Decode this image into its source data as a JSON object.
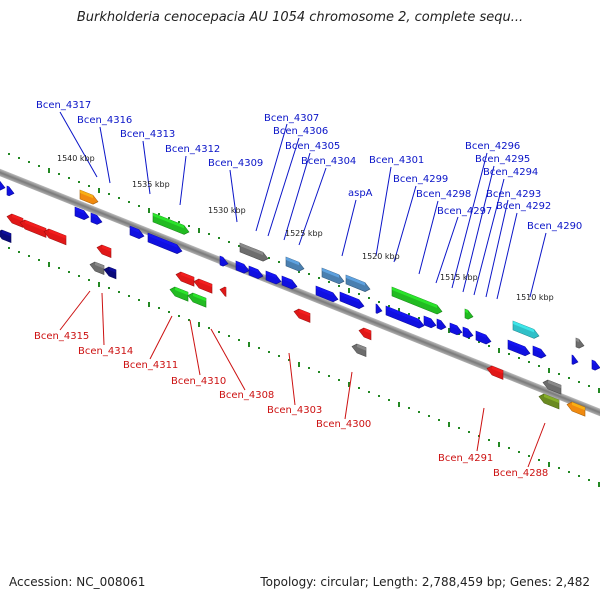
{
  "title": "Burkholderia cenocepacia AU 1054 chromosome 2, complete sequ...",
  "footer": {
    "accession": "Accession: NC_008061",
    "topology": "Topology: circular; Length: 2,788,459 bp; Genes: 2,482"
  },
  "colors": {
    "backbone": "#8a8a8a",
    "forward_label": "#0b15c8",
    "reverse_label": "#cc1111",
    "gene_blue": "#1010e0",
    "gene_red": "#e01818",
    "gene_green": "#22bb22",
    "gene_gray": "#6d6d6d",
    "gene_steel": "#4a7fb0",
    "gene_orange": "#f08a10",
    "gene_navy": "#0a0a7a",
    "gene_cyan": "#30c0c8",
    "gene_olive": "#6a8a20",
    "tick": "#228822"
  },
  "kbp_labels": [
    "1540 kbp",
    "1535 kbp",
    "1530 kbp",
    "1525 kbp",
    "1520 kbp",
    "1515 kbp",
    "1510 kbp"
  ],
  "top_labels": [
    "Bcen_4317",
    "Bcen_4316",
    "Bcen_4313",
    "Bcen_4312",
    "Bcen_4309",
    "Bcen_4307",
    "Bcen_4306",
    "Bcen_4305",
    "Bcen_4304",
    "aspA",
    "Bcen_4301",
    "Bcen_4299",
    "Bcen_4298",
    "Bcen_4297",
    "Bcen_4296",
    "Bcen_4295",
    "Bcen_4294",
    "Bcen_4293",
    "Bcen_4292",
    "Bcen_4290"
  ],
  "bottom_labels": [
    "Bcen_4315",
    "Bcen_4314",
    "Bcen_4311",
    "Bcen_4310",
    "Bcen_4308",
    "Bcen_4303",
    "Bcen_4300",
    "Bcen_4291",
    "Bcen_4288"
  ]
}
